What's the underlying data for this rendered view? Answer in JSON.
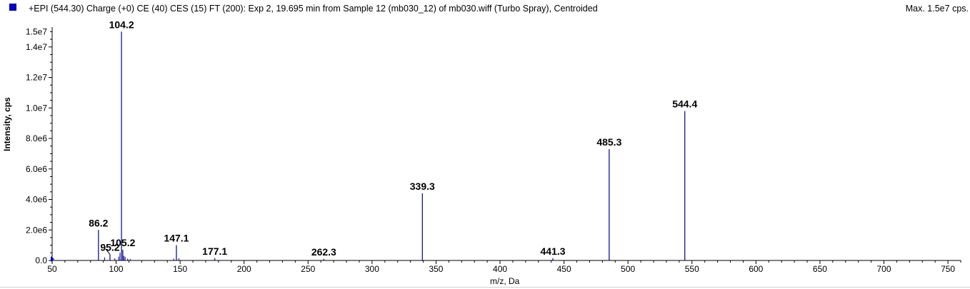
{
  "header": {
    "title": "+EPI (544.30) Charge (+0) CE (40) CES (15) FT (200): Exp 2, 19.695 min from Sample 12 (mb030_12) of mb030.wiff (Turbo Spray), Centroided",
    "max_label": "Max. 1.5e7 cps."
  },
  "chart_data": {
    "type": "bar",
    "title": "+EPI (544.30) Charge (+0) CE (40) CES (15) FT (200): Exp 2, 19.695 min from Sample 12 (mb030_12) of mb030.wiff (Turbo Spray), Centroided",
    "xlabel": "m/z, Da",
    "ylabel": "Intensity, cps",
    "xlim": [
      50,
      760
    ],
    "ylim": [
      0,
      15300000
    ],
    "x_ticks": [
      50,
      100,
      150,
      200,
      250,
      300,
      350,
      400,
      450,
      500,
      550,
      600,
      650,
      700,
      750
    ],
    "y_ticks": [
      {
        "value": 0,
        "label": "0.0"
      },
      {
        "value": 2000000,
        "label": "2.0e6"
      },
      {
        "value": 4000000,
        "label": "4.0e6"
      },
      {
        "value": 6000000,
        "label": "6.0e6"
      },
      {
        "value": 8000000,
        "label": "8.0e6"
      },
      {
        "value": 10000000,
        "label": "1.0e7"
      },
      {
        "value": 12000000,
        "label": "1.2e7"
      },
      {
        "value": 14000000,
        "label": "1.4e7"
      },
      {
        "value": 15000000,
        "label": "1.5e7"
      }
    ],
    "grid": false,
    "series_color": "#00008b",
    "peaks": [
      {
        "mz": 86.2,
        "intensity": 2000000,
        "label": "86.2"
      },
      {
        "mz": 95.2,
        "intensity": 400000,
        "label": "95.2"
      },
      {
        "mz": 104.2,
        "intensity": 15000000,
        "label": "104.2"
      },
      {
        "mz": 105.2,
        "intensity": 700000,
        "label": "105.2"
      },
      {
        "mz": 147.1,
        "intensity": 1000000,
        "label": "147.1"
      },
      {
        "mz": 177.1,
        "intensity": 150000,
        "label": "177.1"
      },
      {
        "mz": 262.3,
        "intensity": 100000,
        "label": "262.3"
      },
      {
        "mz": 339.3,
        "intensity": 4400000,
        "label": "339.3"
      },
      {
        "mz": 441.3,
        "intensity": 150000,
        "label": "441.3"
      },
      {
        "mz": 485.3,
        "intensity": 7300000,
        "label": "485.3"
      },
      {
        "mz": 544.4,
        "intensity": 9800000,
        "label": "544.4"
      }
    ],
    "minor_peaks": [
      {
        "mz": 91,
        "intensity": 200000
      },
      {
        "mz": 99,
        "intensity": 150000
      },
      {
        "mz": 102,
        "intensity": 250000
      },
      {
        "mz": 103,
        "intensity": 500000
      },
      {
        "mz": 106,
        "intensity": 300000
      },
      {
        "mz": 107,
        "intensity": 250000
      },
      {
        "mz": 109,
        "intensity": 120000
      },
      {
        "mz": 111,
        "intensity": 100000
      },
      {
        "mz": 145,
        "intensity": 120000
      },
      {
        "mz": 149,
        "intensity": 150000
      }
    ]
  }
}
